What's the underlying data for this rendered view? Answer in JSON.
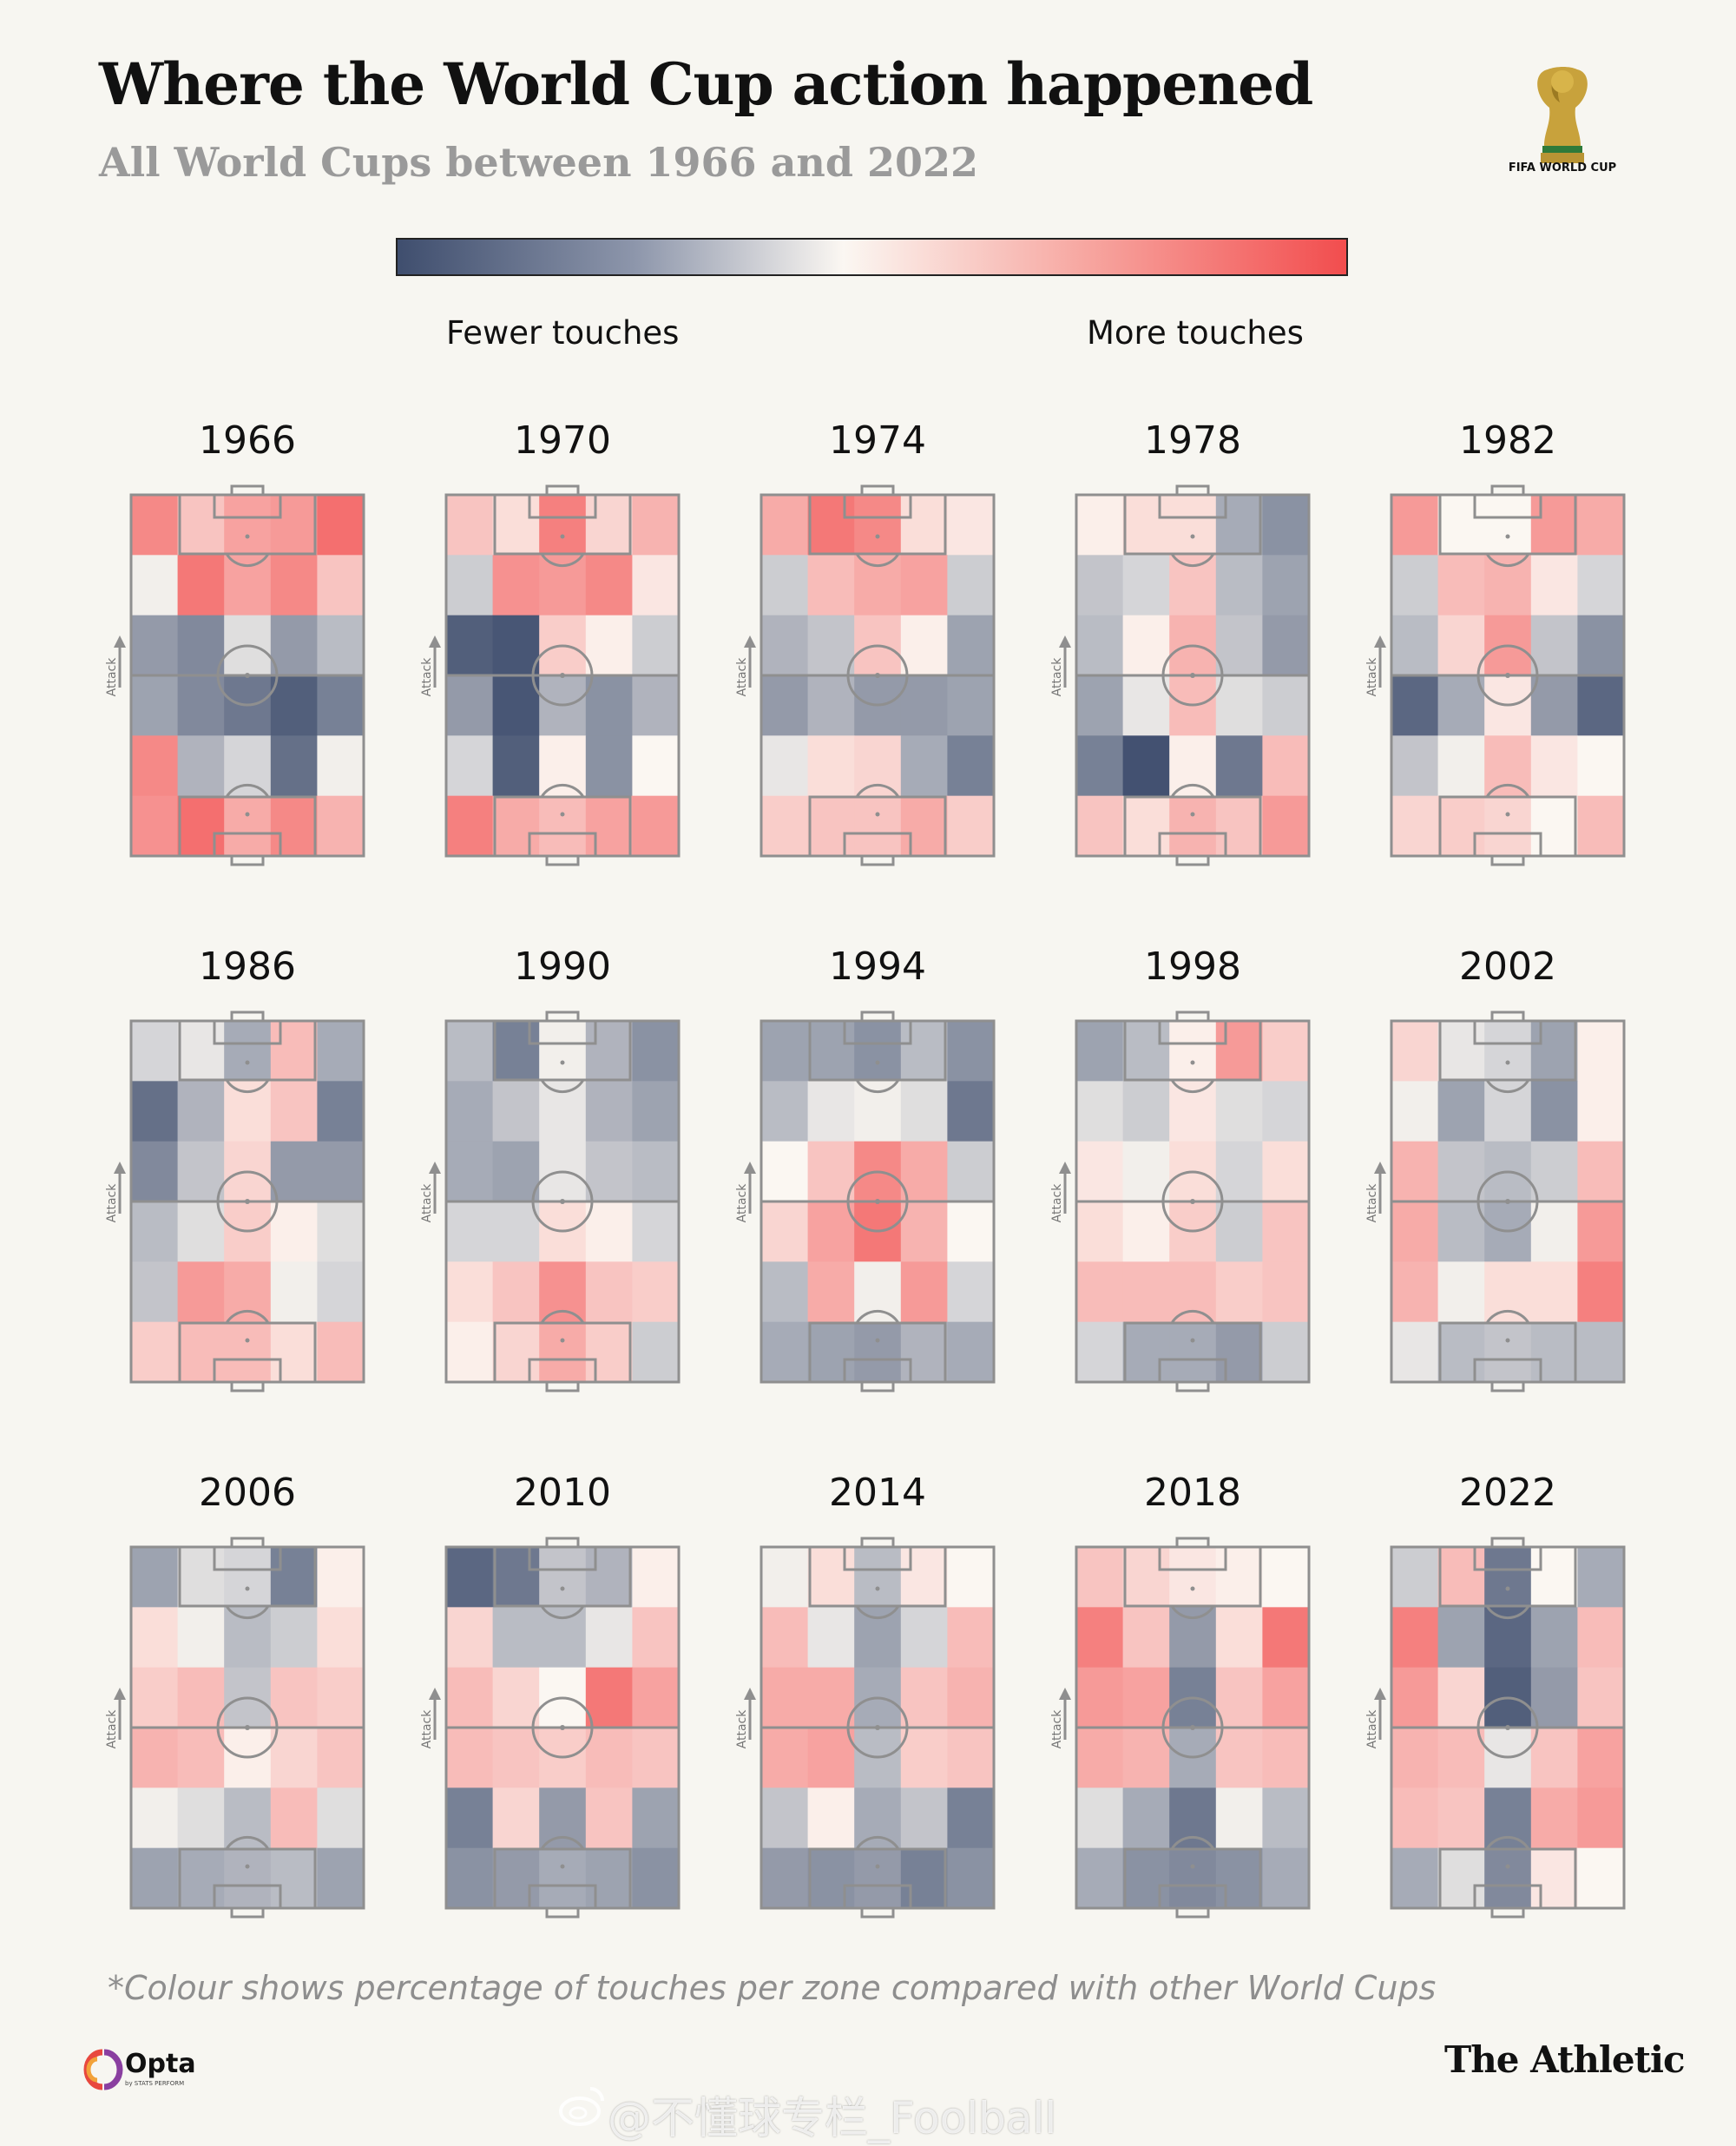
{
  "header": {
    "title": "Where the World Cup action happened",
    "subtitle": "All World Cups between 1966 and 2022"
  },
  "logos": {
    "world_cup": "FIFA WORLD CUP",
    "opta": "Opta",
    "opta_sub": "by STATS PERFORM",
    "publisher": "The Athletic"
  },
  "legend": {
    "fewer": "Fewer touches",
    "more": "More touches",
    "colors": [
      "#3f4e6e",
      "#8d96ab",
      "#fbf7f2",
      "#f7a8a2",
      "#f24d4e"
    ]
  },
  "footnote": "*Colour shows percentage of touches per zone compared with other World Cups",
  "watermark": "@不懂球专栏_Foolball",
  "colors": {
    "background": "#f7f6f1",
    "pitch_lines": "#8f8f8f",
    "scale_low": "#3f4e6e",
    "scale_mid": "#fbf7f2",
    "scale_high": "#f24d4e"
  },
  "chart_data": {
    "type": "heatmap",
    "attack_label": "Attack",
    "value_scale": "relative: -1 = fewer touches, 0 = average, +1 = more touches",
    "grid": {
      "rows": 6,
      "cols": 5
    },
    "pitches": [
      {
        "year": "1966",
        "zones": [
          [
            0.65,
            0.3,
            0.5,
            0.55,
            0.8
          ],
          [
            -0.05,
            0.75,
            0.5,
            0.65,
            0.3
          ],
          [
            -0.55,
            -0.65,
            -0.15,
            -0.55,
            -0.35
          ],
          [
            -0.5,
            -0.65,
            -0.75,
            -0.9,
            -0.7
          ],
          [
            0.65,
            -0.4,
            -0.2,
            -0.8,
            -0.05
          ],
          [
            0.6,
            0.8,
            0.45,
            0.65,
            0.4
          ]
        ]
      },
      {
        "year": "1970",
        "zones": [
          [
            0.3,
            0.15,
            0.7,
            0.2,
            0.4
          ],
          [
            -0.25,
            0.6,
            0.55,
            0.65,
            0.1
          ],
          [
            -0.9,
            -0.95,
            0.25,
            0.05,
            -0.25
          ],
          [
            -0.55,
            -0.95,
            -0.4,
            -0.6,
            -0.4
          ],
          [
            -0.2,
            -0.9,
            0.05,
            -0.6,
            0.0
          ],
          [
            0.7,
            0.45,
            0.35,
            0.5,
            0.55
          ]
        ]
      },
      {
        "year": "1974",
        "zones": [
          [
            0.45,
            0.75,
            0.65,
            0.15,
            0.1
          ],
          [
            -0.25,
            0.35,
            0.45,
            0.5,
            -0.25
          ],
          [
            -0.4,
            -0.3,
            0.3,
            0.05,
            -0.5
          ],
          [
            -0.55,
            -0.4,
            -0.55,
            -0.55,
            -0.5
          ],
          [
            -0.1,
            0.15,
            0.2,
            -0.45,
            -0.7
          ],
          [
            0.25,
            0.3,
            0.3,
            0.45,
            0.25
          ]
        ]
      },
      {
        "year": "1978",
        "zones": [
          [
            0.05,
            0.15,
            0.15,
            -0.45,
            -0.6
          ],
          [
            -0.3,
            -0.2,
            0.3,
            -0.35,
            -0.5
          ],
          [
            -0.35,
            0.05,
            0.4,
            -0.3,
            -0.55
          ],
          [
            -0.5,
            -0.1,
            0.35,
            -0.15,
            -0.25
          ],
          [
            -0.7,
            -0.98,
            0.05,
            -0.75,
            0.35
          ],
          [
            0.3,
            0.15,
            0.4,
            0.3,
            0.55
          ]
        ]
      },
      {
        "year": "1982",
        "zones": [
          [
            0.55,
            0.0,
            0.0,
            0.55,
            0.45
          ],
          [
            -0.25,
            0.35,
            0.4,
            0.1,
            -0.2
          ],
          [
            -0.35,
            0.2,
            0.55,
            -0.3,
            -0.6
          ],
          [
            -0.85,
            -0.45,
            0.1,
            -0.55,
            -0.85
          ],
          [
            -0.3,
            -0.05,
            0.35,
            0.1,
            0.0
          ],
          [
            0.2,
            0.25,
            0.2,
            0.0,
            0.35
          ]
        ]
      },
      {
        "year": "1986",
        "zones": [
          [
            -0.2,
            -0.1,
            -0.45,
            0.35,
            -0.45
          ],
          [
            -0.8,
            -0.4,
            0.15,
            0.3,
            -0.7
          ],
          [
            -0.65,
            -0.3,
            0.2,
            -0.55,
            -0.55
          ],
          [
            -0.35,
            -0.15,
            0.25,
            0.05,
            -0.15
          ],
          [
            -0.3,
            0.55,
            0.45,
            -0.05,
            -0.2
          ],
          [
            0.25,
            0.35,
            0.35,
            0.15,
            0.35
          ]
        ]
      },
      {
        "year": "1990",
        "zones": [
          [
            -0.35,
            -0.7,
            -0.05,
            -0.4,
            -0.6
          ],
          [
            -0.45,
            -0.3,
            -0.1,
            -0.4,
            -0.5
          ],
          [
            -0.45,
            -0.5,
            -0.1,
            -0.3,
            -0.35
          ],
          [
            -0.2,
            -0.2,
            0.15,
            0.05,
            -0.2
          ],
          [
            0.15,
            0.3,
            0.6,
            0.3,
            0.25
          ],
          [
            0.05,
            0.2,
            0.45,
            0.25,
            -0.25
          ]
        ]
      },
      {
        "year": "1994",
        "zones": [
          [
            -0.5,
            -0.5,
            -0.6,
            -0.35,
            -0.6
          ],
          [
            -0.35,
            -0.1,
            -0.05,
            -0.15,
            -0.75
          ],
          [
            0.0,
            0.3,
            0.65,
            0.45,
            -0.25
          ],
          [
            0.2,
            0.5,
            0.75,
            0.4,
            0.0
          ],
          [
            -0.35,
            0.45,
            -0.05,
            0.55,
            -0.2
          ],
          [
            -0.45,
            -0.5,
            -0.55,
            -0.4,
            -0.45
          ]
        ]
      },
      {
        "year": "1998",
        "zones": [
          [
            -0.5,
            -0.35,
            0.05,
            0.55,
            0.25
          ],
          [
            -0.15,
            -0.25,
            0.1,
            -0.15,
            -0.2
          ],
          [
            0.1,
            -0.05,
            0.15,
            -0.2,
            0.15
          ],
          [
            0.15,
            0.05,
            0.25,
            -0.25,
            0.3
          ],
          [
            0.35,
            0.35,
            0.35,
            0.25,
            0.3
          ],
          [
            -0.2,
            -0.45,
            -0.45,
            -0.55,
            -0.25
          ]
        ]
      },
      {
        "year": "2002",
        "zones": [
          [
            0.2,
            -0.1,
            -0.2,
            -0.5,
            0.05
          ],
          [
            -0.05,
            -0.5,
            -0.2,
            -0.6,
            0.05
          ],
          [
            0.4,
            -0.3,
            -0.35,
            -0.25,
            0.35
          ],
          [
            0.45,
            -0.35,
            -0.45,
            -0.05,
            0.55
          ],
          [
            0.4,
            -0.05,
            0.15,
            0.15,
            0.7
          ],
          [
            -0.1,
            -0.35,
            -0.3,
            -0.35,
            -0.35
          ]
        ]
      },
      {
        "year": "2006",
        "zones": [
          [
            -0.5,
            -0.15,
            -0.2,
            -0.7,
            0.05
          ],
          [
            0.15,
            -0.05,
            -0.35,
            -0.25,
            0.15
          ],
          [
            0.25,
            0.35,
            -0.3,
            0.3,
            0.25
          ],
          [
            0.4,
            0.35,
            0.05,
            0.2,
            0.3
          ],
          [
            -0.05,
            -0.15,
            -0.35,
            0.35,
            -0.15
          ],
          [
            -0.5,
            -0.45,
            -0.4,
            -0.35,
            -0.5
          ]
        ]
      },
      {
        "year": "2010",
        "zones": [
          [
            -0.85,
            -0.75,
            -0.3,
            -0.4,
            0.05
          ],
          [
            0.2,
            -0.35,
            -0.35,
            -0.1,
            0.3
          ],
          [
            0.35,
            0.2,
            0.0,
            0.75,
            0.5
          ],
          [
            0.35,
            0.3,
            0.25,
            0.35,
            0.3
          ],
          [
            -0.7,
            0.2,
            -0.55,
            0.3,
            -0.5
          ],
          [
            -0.6,
            -0.55,
            -0.45,
            -0.5,
            -0.6
          ]
        ]
      },
      {
        "year": "2014",
        "zones": [
          [
            -0.05,
            0.15,
            -0.35,
            0.1,
            0.0
          ],
          [
            0.35,
            -0.1,
            -0.5,
            -0.2,
            0.35
          ],
          [
            0.45,
            0.45,
            -0.45,
            0.3,
            0.4
          ],
          [
            0.45,
            0.5,
            -0.35,
            0.25,
            0.3
          ],
          [
            -0.3,
            0.05,
            -0.45,
            -0.3,
            -0.7
          ],
          [
            -0.55,
            -0.6,
            -0.55,
            -0.7,
            -0.6
          ]
        ]
      },
      {
        "year": "2018",
        "zones": [
          [
            0.3,
            0.2,
            0.1,
            0.05,
            0.0
          ],
          [
            0.7,
            0.3,
            -0.55,
            0.15,
            0.75
          ],
          [
            0.55,
            0.5,
            -0.7,
            0.3,
            0.5
          ],
          [
            0.45,
            0.4,
            -0.45,
            0.3,
            0.35
          ],
          [
            -0.15,
            -0.45,
            -0.75,
            -0.05,
            -0.35
          ],
          [
            -0.45,
            -0.6,
            -0.65,
            -0.6,
            -0.45
          ]
        ]
      },
      {
        "year": "2022",
        "zones": [
          [
            -0.25,
            0.35,
            -0.75,
            0.0,
            -0.45
          ],
          [
            0.7,
            -0.5,
            -0.85,
            -0.5,
            0.35
          ],
          [
            0.55,
            0.2,
            -0.9,
            -0.55,
            0.3
          ],
          [
            0.4,
            0.35,
            -0.1,
            0.3,
            0.5
          ],
          [
            0.35,
            0.3,
            -0.7,
            0.45,
            0.55
          ],
          [
            -0.45,
            -0.15,
            -0.65,
            0.1,
            0.0
          ]
        ]
      }
    ]
  }
}
